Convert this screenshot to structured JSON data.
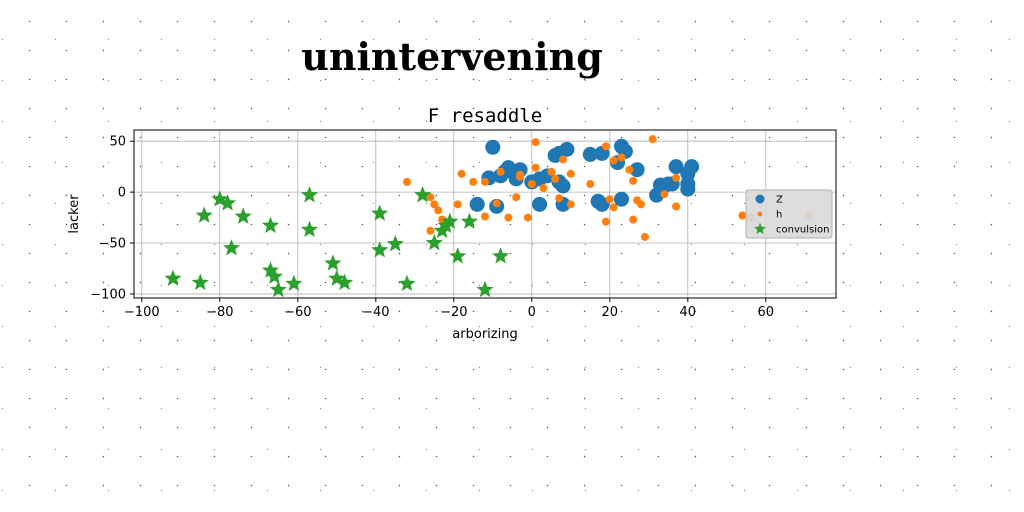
{
  "figure": {
    "suptitle": "unintervening"
  },
  "chart_data": {
    "type": "scatter",
    "title": "F resaddle",
    "xlabel": "arborizing",
    "ylabel": "lacker",
    "xlim": [
      -102,
      78
    ],
    "ylim": [
      -104,
      61
    ],
    "xticks": [
      -100,
      -80,
      -60,
      -40,
      -20,
      0,
      20,
      40,
      60
    ],
    "xtick_labels": [
      "−100",
      "−80",
      "−60",
      "−40",
      "−20",
      "0",
      "20",
      "40",
      "60"
    ],
    "yticks": [
      50,
      0,
      -50,
      -100
    ],
    "ytick_labels": [
      "50",
      "0",
      "−50",
      "−100"
    ],
    "grid": true,
    "legend_position": "right",
    "series": [
      {
        "name": "Z",
        "marker": "circle-large",
        "color": "#1f77b4",
        "points": [
          [
            -10,
            44
          ],
          [
            -7,
            20
          ],
          [
            -6,
            24
          ],
          [
            -3,
            22
          ],
          [
            -4,
            13
          ],
          [
            -14,
            -12
          ],
          [
            -9,
            -14
          ],
          [
            -11,
            14
          ],
          [
            -8,
            16
          ],
          [
            0,
            10
          ],
          [
            2,
            13
          ],
          [
            4,
            16
          ],
          [
            6,
            36
          ],
          [
            7,
            38
          ],
          [
            9,
            42
          ],
          [
            7,
            10
          ],
          [
            8,
            6
          ],
          [
            8,
            -12
          ],
          [
            15,
            37
          ],
          [
            18,
            38
          ],
          [
            17,
            -9
          ],
          [
            18,
            -12
          ],
          [
            22,
            29
          ],
          [
            23,
            45
          ],
          [
            24,
            40
          ],
          [
            23,
            -7
          ],
          [
            27,
            22
          ],
          [
            33,
            7
          ],
          [
            34,
            6
          ],
          [
            35,
            8
          ],
          [
            32,
            -3
          ],
          [
            36,
            8
          ],
          [
            37,
            25
          ],
          [
            40,
            18
          ],
          [
            41,
            25
          ],
          [
            40,
            3
          ],
          [
            40,
            8
          ],
          [
            2,
            -12
          ]
        ]
      },
      {
        "name": "h",
        "marker": "circle-small",
        "color": "#ff7f0e",
        "points": [
          [
            -32,
            10
          ],
          [
            -28,
            -3
          ],
          [
            -26,
            -5
          ],
          [
            -26,
            -38
          ],
          [
            -25,
            -12
          ],
          [
            -24,
            -18
          ],
          [
            -23,
            -27
          ],
          [
            -19,
            -12
          ],
          [
            -18,
            18
          ],
          [
            -15,
            10
          ],
          [
            -12,
            10
          ],
          [
            -12,
            -24
          ],
          [
            -9,
            -11
          ],
          [
            -8,
            20
          ],
          [
            -6,
            -25
          ],
          [
            -4,
            -5
          ],
          [
            -3,
            15
          ],
          [
            -3,
            17
          ],
          [
            -1,
            -25
          ],
          [
            0,
            8
          ],
          [
            1,
            24
          ],
          [
            1,
            49
          ],
          [
            3,
            4
          ],
          [
            5,
            20
          ],
          [
            6,
            13
          ],
          [
            7,
            -6
          ],
          [
            8,
            32
          ],
          [
            10,
            18
          ],
          [
            10,
            -12
          ],
          [
            15,
            8
          ],
          [
            19,
            -29
          ],
          [
            19,
            45
          ],
          [
            20,
            -7
          ],
          [
            21,
            -15
          ],
          [
            21,
            31
          ],
          [
            23,
            34
          ],
          [
            25,
            22
          ],
          [
            26,
            11
          ],
          [
            26,
            -27
          ],
          [
            27,
            -8
          ],
          [
            28,
            -12
          ],
          [
            29,
            -44
          ],
          [
            31,
            52
          ],
          [
            34,
            -2
          ],
          [
            37,
            -14
          ],
          [
            37,
            14
          ],
          [
            54,
            -23
          ],
          [
            56,
            -25
          ],
          [
            71,
            -23
          ]
        ]
      },
      {
        "name": "convulsion",
        "marker": "star",
        "color": "#2ca02c",
        "points": [
          [
            -92,
            -85
          ],
          [
            -85,
            -89
          ],
          [
            -84,
            -23
          ],
          [
            -80,
            -7
          ],
          [
            -78,
            -11
          ],
          [
            -77,
            -55
          ],
          [
            -74,
            -24
          ],
          [
            -67,
            -33
          ],
          [
            -67,
            -77
          ],
          [
            -66,
            -83
          ],
          [
            -65,
            -96
          ],
          [
            -61,
            -90
          ],
          [
            -57,
            -37
          ],
          [
            -57,
            -3
          ],
          [
            -51,
            -70
          ],
          [
            -50,
            -85
          ],
          [
            -48,
            -89
          ],
          [
            -39,
            -21
          ],
          [
            -39,
            -57
          ],
          [
            -35,
            -51
          ],
          [
            -32,
            -90
          ],
          [
            -28,
            -3
          ],
          [
            -25,
            -50
          ],
          [
            -23,
            -38
          ],
          [
            -22,
            -33
          ],
          [
            -21,
            -29
          ],
          [
            -19,
            -63
          ],
          [
            -16,
            -29
          ],
          [
            -12,
            -96
          ],
          [
            -8,
            -63
          ]
        ]
      }
    ]
  }
}
